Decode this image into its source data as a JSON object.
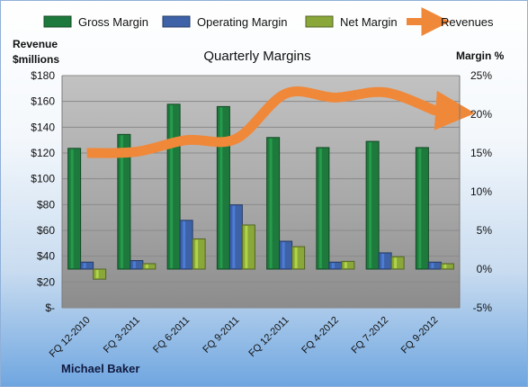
{
  "chart_data": {
    "type": "bar",
    "title": "Quarterly Margins",
    "categories": [
      "FQ 12-2010",
      "FQ 3-2011",
      "FQ 6-2011",
      "FQ 9-2011",
      "FQ 12-2011",
      "FQ 4-2012",
      "FQ 7-2012",
      "FQ 9-2012"
    ],
    "series": [
      {
        "name": "Gross Margin",
        "axis": "right",
        "color": "#1e7a3c",
        "values": [
          15.6,
          17.4,
          21.3,
          21.0,
          17.0,
          15.7,
          16.5,
          15.7
        ]
      },
      {
        "name": "Operating Margin",
        "axis": "right",
        "color": "#3d62a8",
        "values": [
          0.9,
          1.1,
          6.3,
          8.3,
          3.6,
          0.9,
          2.1,
          0.9
        ]
      },
      {
        "name": "Net Margin",
        "axis": "right",
        "color": "#8aa73a",
        "values": [
          -1.3,
          0.7,
          3.9,
          5.7,
          2.9,
          1.0,
          1.6,
          0.7
        ]
      },
      {
        "name": "Revenues",
        "axis": "left",
        "type": "line",
        "color": "#f0883a",
        "values": [
          120,
          121,
          130,
          131,
          166,
          163,
          167,
          153
        ]
      }
    ],
    "ylabel_left": "Revenue\n$millions",
    "ylabel_right": "Margin %",
    "ylim_left": [
      0,
      180
    ],
    "ylim_right": [
      -5,
      25
    ],
    "yticks_left": [
      "$-",
      "$20",
      "$40",
      "$60",
      "$80",
      "$100",
      "$120",
      "$140",
      "$160",
      "$180"
    ],
    "yticks_right": [
      "-5%",
      "0%",
      "5%",
      "10%",
      "15%",
      "20%",
      "25%"
    ],
    "grid": true,
    "legend_position": "top"
  },
  "footer": {
    "author": "Michael Baker"
  }
}
